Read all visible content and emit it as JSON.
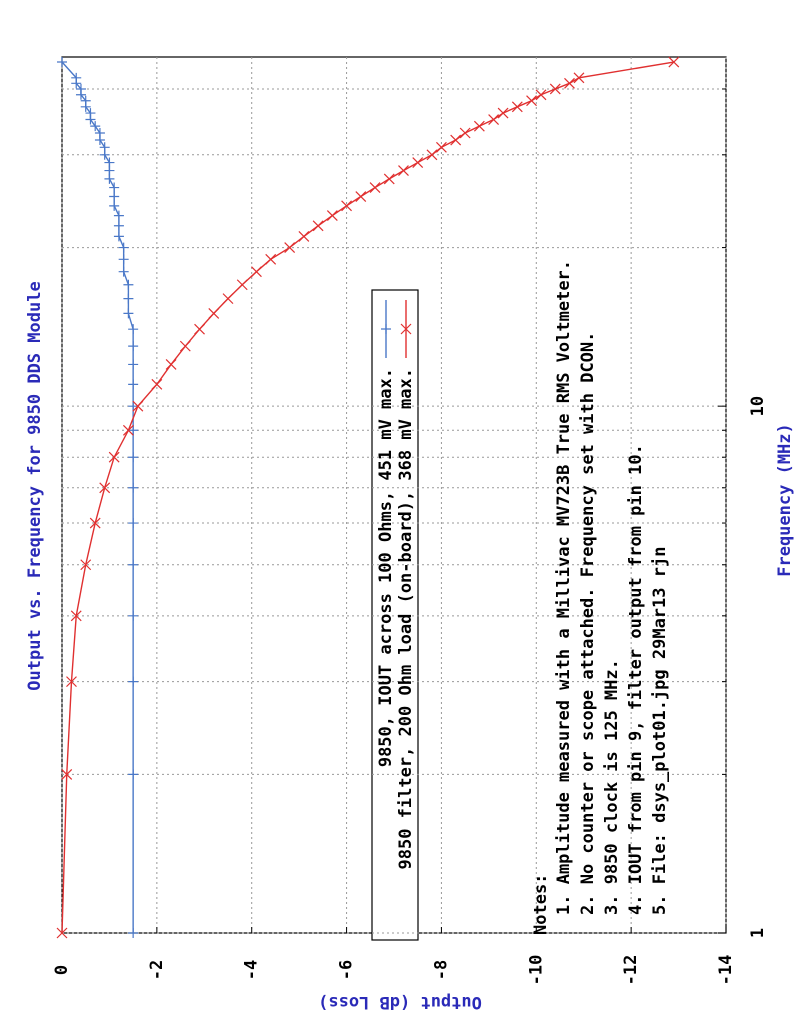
{
  "chart_data": {
    "type": "line",
    "title": "Output vs. Frequency for 9850 DDS Module",
    "x_label": "Frequency (MHz)",
    "y_label": "Output (dB Loss)",
    "x": [
      1,
      2,
      3,
      4,
      5,
      6,
      7,
      8,
      9,
      10,
      11,
      12,
      13,
      14,
      15,
      16,
      17,
      18,
      19,
      20,
      21,
      22,
      23,
      24,
      25,
      26,
      27,
      28,
      29,
      30,
      31,
      32,
      33,
      34,
      35,
      36,
      37,
      38,
      39,
      40,
      41,
      42,
      45
    ],
    "series": [
      {
        "name": "9850, IOUT across 100 Ohms, 451 mV max.",
        "color": "#4a78c8",
        "marker": "plus",
        "values": [
          -1.5,
          -1.5,
          -1.5,
          -1.5,
          -1.5,
          -1.5,
          -1.5,
          -1.5,
          -1.5,
          -1.5,
          -1.5,
          -1.5,
          -1.5,
          -1.5,
          -1.4,
          -1.4,
          -1.4,
          -1.3,
          -1.3,
          -1.3,
          -1.2,
          -1.2,
          -1.2,
          -1.1,
          -1.1,
          -1.1,
          -1.0,
          -1.0,
          -1.0,
          -0.9,
          -0.9,
          -0.8,
          -0.8,
          -0.7,
          -0.6,
          -0.6,
          -0.5,
          -0.5,
          -0.4,
          -0.4,
          -0.3,
          -0.3,
          0
        ]
      },
      {
        "name": "9850 filter, 200 Ohm load (on-board), 368 mV max.",
        "color": "#e03030",
        "marker": "cross",
        "values": [
          0,
          -0.1,
          -0.2,
          -0.3,
          -0.5,
          -0.7,
          -0.9,
          -1.1,
          -1.4,
          -1.6,
          -2.0,
          -2.3,
          -2.6,
          -2.9,
          -3.2,
          -3.5,
          -3.8,
          -4.1,
          -4.4,
          -4.8,
          -5.1,
          -5.4,
          -5.7,
          -6.0,
          -6.3,
          -6.6,
          -6.9,
          -7.2,
          -7.5,
          -7.8,
          -8.0,
          -8.3,
          -8.5,
          -8.8,
          -9.1,
          -9.3,
          -9.6,
          -9.9,
          -10.1,
          -10.4,
          -10.7,
          -10.9,
          -12.9
        ]
      }
    ],
    "xlim": [
      1,
      46
    ],
    "log_x": true,
    "xticks": [
      1,
      10
    ],
    "x_minor_grid": [
      2,
      3,
      4,
      5,
      6,
      7,
      8,
      9,
      20,
      30,
      40
    ],
    "ylim": [
      0,
      -14
    ],
    "yticks": [
      0,
      -2,
      -4,
      -6,
      -8,
      -10,
      -12,
      -14
    ],
    "grid": true,
    "notes": {
      "heading": "Notes:",
      "items": [
        "1. Amplitude measured with a Millivac MV723B True RMS Voltmeter.",
        "2. No counter or scope attached.  Frequency set with DCON.",
        "3. 9850 clock is 125 MHz.",
        "4. IOUT from pin 9, filter output from pin 10.",
        "5. File: dsys_plot01.jpg 29Mar13 rjn"
      ]
    }
  }
}
